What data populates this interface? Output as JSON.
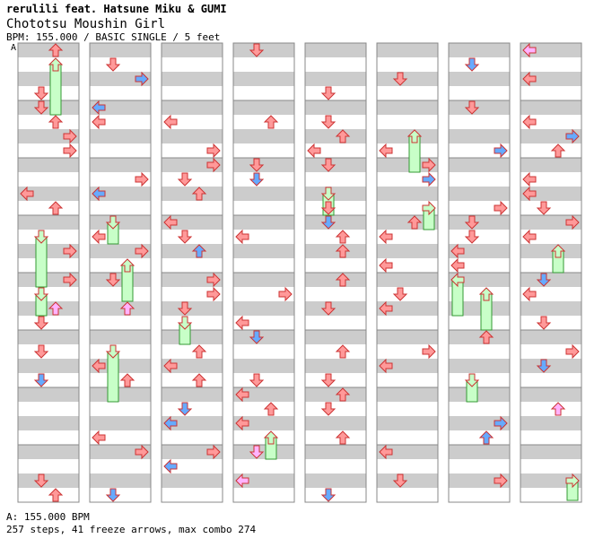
{
  "header": {
    "artist": "rerulili feat. Hatsune Miku & GUMI",
    "song_title": "Chototsu Moushin Girl",
    "meta": "BPM: 155.000 / BASIC SINGLE / 5 feet"
  },
  "section_marker": "A",
  "footer": {
    "bpm_line": "A: 155.000 BPM",
    "stats_line": "257 steps, 41 freeze arrows, max combo 274"
  },
  "colors": {
    "stripe": "#cccccc",
    "frame": "#888888",
    "arrow_red": "#ff9999",
    "arrow_blue": "#66aaff",
    "arrow_pink": "#ffb3ff",
    "freeze_green": "#c8ffc8"
  },
  "chart_data": {
    "type": "step_chart",
    "columns": 8,
    "measures_per_column": 8,
    "lanes": [
      "left",
      "down",
      "up",
      "right"
    ],
    "stats": {
      "steps": 257,
      "freeze_arrows": 41,
      "max_combo": 274
    }
  }
}
